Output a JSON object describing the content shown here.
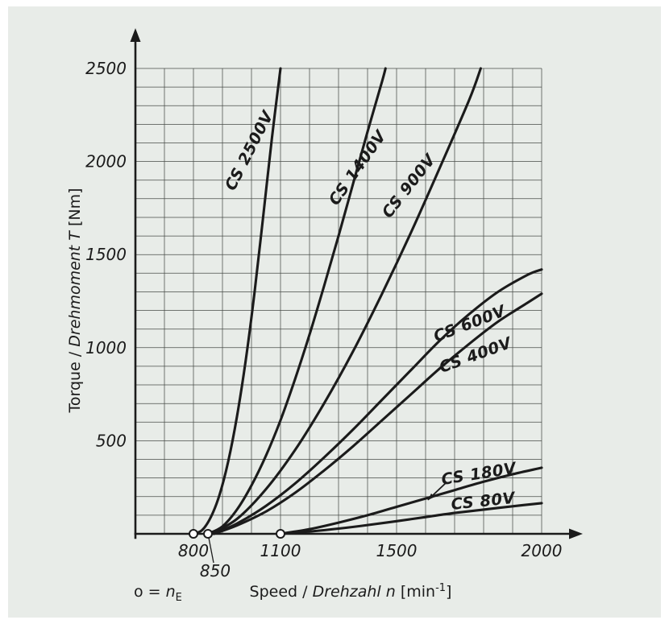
{
  "chart_data": {
    "type": "line",
    "title": "",
    "ylabel_parts": {
      "plain": "Torque / ",
      "italic": "Drehmoment T",
      "suffix": " [Nm]"
    },
    "xlabel_parts": {
      "plain": "Speed / ",
      "italic": "Drehzahl n",
      "bracket": " [min",
      "sup": "-1",
      "close": "]"
    },
    "origin_note": {
      "prefix": "o = ",
      "var": "n",
      "sub": "E"
    },
    "axis": {
      "x_min": 600,
      "x_max": 2000,
      "y_min": 0,
      "y_max": 2500,
      "x_grid_step": 100,
      "y_grid_step": 100
    },
    "x_ticks": [
      {
        "v": 800,
        "label": "800"
      },
      {
        "v": 850,
        "label": "850",
        "offset": true
      },
      {
        "v": 1100,
        "label": "1100"
      },
      {
        "v": 1500,
        "label": "1500"
      },
      {
        "v": 2000,
        "label": "2000"
      }
    ],
    "y_ticks": [
      {
        "v": 500,
        "label": "500"
      },
      {
        "v": 1000,
        "label": "1000"
      },
      {
        "v": 1500,
        "label": "1500"
      },
      {
        "v": 2000,
        "label": "2000"
      },
      {
        "v": 2500,
        "label": "2500"
      }
    ],
    "ne_markers": [
      800,
      850,
      1100
    ],
    "series": [
      {
        "name": "CS 2500V",
        "n_e": 800,
        "points": [
          [
            800,
            0
          ],
          [
            830,
            20
          ],
          [
            860,
            90
          ],
          [
            890,
            210
          ],
          [
            920,
            390
          ],
          [
            950,
            630
          ],
          [
            980,
            930
          ],
          [
            1010,
            1290
          ],
          [
            1040,
            1700
          ],
          [
            1070,
            2120
          ],
          [
            1100,
            2500
          ]
        ],
        "label": {
          "n": 1008,
          "T": 2046,
          "rot": -63
        }
      },
      {
        "name": "CS 1400V",
        "n_e": 850,
        "points": [
          [
            850,
            0
          ],
          [
            900,
            40
          ],
          [
            950,
            130
          ],
          [
            1000,
            260
          ],
          [
            1050,
            420
          ],
          [
            1100,
            610
          ],
          [
            1150,
            830
          ],
          [
            1200,
            1070
          ],
          [
            1250,
            1330
          ],
          [
            1300,
            1600
          ],
          [
            1350,
            1880
          ],
          [
            1400,
            2160
          ],
          [
            1450,
            2430
          ],
          [
            1462,
            2500
          ]
        ],
        "label": {
          "n": 1380,
          "T": 1950,
          "rot": -55
        }
      },
      {
        "name": "CS 900V",
        "n_e": 860,
        "points": [
          [
            860,
            0
          ],
          [
            950,
            80
          ],
          [
            1050,
            240
          ],
          [
            1150,
            450
          ],
          [
            1250,
            700
          ],
          [
            1350,
            980
          ],
          [
            1450,
            1290
          ],
          [
            1550,
            1620
          ],
          [
            1650,
            1970
          ],
          [
            1750,
            2330
          ],
          [
            1790,
            2500
          ]
        ],
        "label": {
          "n": 1556,
          "T": 1851,
          "rot": -52
        }
      },
      {
        "name": "CS 600V",
        "n_e": 870,
        "points": [
          [
            870,
            0
          ],
          [
            950,
            55
          ],
          [
            1050,
            150
          ],
          [
            1150,
            270
          ],
          [
            1250,
            410
          ],
          [
            1350,
            560
          ],
          [
            1450,
            720
          ],
          [
            1550,
            880
          ],
          [
            1650,
            1040
          ],
          [
            1750,
            1180
          ],
          [
            1850,
            1300
          ],
          [
            1950,
            1390
          ],
          [
            2000,
            1420
          ]
        ],
        "label": {
          "n": 1758,
          "T": 1103,
          "rot": -21
        }
      },
      {
        "name": "CS 400V",
        "n_e": 870,
        "points": [
          [
            870,
            0
          ],
          [
            950,
            45
          ],
          [
            1050,
            120
          ],
          [
            1150,
            220
          ],
          [
            1250,
            340
          ],
          [
            1350,
            470
          ],
          [
            1450,
            610
          ],
          [
            1550,
            750
          ],
          [
            1650,
            890
          ],
          [
            1750,
            1020
          ],
          [
            1850,
            1140
          ],
          [
            1950,
            1240
          ],
          [
            2000,
            1290
          ]
        ],
        "label": {
          "n": 1778,
          "T": 934,
          "rot": -20
        }
      },
      {
        "name": "CS 180V",
        "n_e": 1100,
        "points": [
          [
            1100,
            0
          ],
          [
            1200,
            25
          ],
          [
            1300,
            60
          ],
          [
            1400,
            100
          ],
          [
            1500,
            145
          ],
          [
            1600,
            190
          ],
          [
            1700,
            235
          ],
          [
            1800,
            280
          ],
          [
            1900,
            320
          ],
          [
            2000,
            355
          ]
        ],
        "label": {
          "n": 1786,
          "T": 295,
          "rot": -9
        },
        "pointer": {
          "from": [
            1669,
            272
          ],
          "to": [
            1608,
            182
          ]
        }
      },
      {
        "name": "CS 80V",
        "n_e": 1100,
        "points": [
          [
            1100,
            0
          ],
          [
            1200,
            12
          ],
          [
            1300,
            28
          ],
          [
            1400,
            47
          ],
          [
            1500,
            68
          ],
          [
            1600,
            90
          ],
          [
            1700,
            112
          ],
          [
            1800,
            130
          ],
          [
            1900,
            148
          ],
          [
            2000,
            165
          ]
        ],
        "label": {
          "n": 1800,
          "T": 148,
          "rot": -6
        }
      }
    ],
    "colors": {
      "panel_bg": "#e8ece8",
      "line": "#1b1b1b",
      "grid": "#474b47",
      "marker_fill": "#ffffff"
    },
    "legend": "none",
    "grid": "on"
  }
}
